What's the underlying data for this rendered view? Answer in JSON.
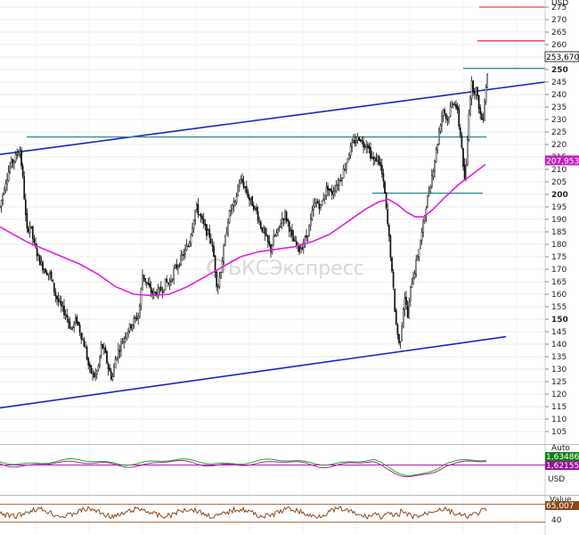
{
  "chart_data": [
    {
      "type": "candlestick",
      "currency_label": "USD",
      "y_ticks": [
        105,
        110,
        115,
        120,
        125,
        130,
        135,
        140,
        145,
        150,
        155,
        160,
        165,
        170,
        175,
        180,
        185,
        190,
        195,
        200,
        205,
        210,
        215,
        220,
        225,
        230,
        235,
        240,
        245,
        250,
        255,
        260,
        265,
        270,
        275
      ],
      "y_ticks_bold": [
        150,
        200,
        250
      ],
      "ylim": [
        100,
        280
      ],
      "last_price_label": "253,6700",
      "ma_value_label": "207,9538",
      "price_path": [
        [
          0,
          195
        ],
        [
          6,
          205
        ],
        [
          12,
          212
        ],
        [
          18,
          215
        ],
        [
          22,
          219
        ],
        [
          26,
          205
        ],
        [
          30,
          185
        ],
        [
          34,
          188
        ],
        [
          38,
          180
        ],
        [
          42,
          176
        ],
        [
          46,
          172
        ],
        [
          50,
          170
        ],
        [
          56,
          168
        ],
        [
          62,
          160
        ],
        [
          68,
          155
        ],
        [
          74,
          152
        ],
        [
          80,
          146
        ],
        [
          86,
          150
        ],
        [
          90,
          145
        ],
        [
          96,
          138
        ],
        [
          100,
          130
        ],
        [
          106,
          127
        ],
        [
          110,
          130
        ],
        [
          114,
          140
        ],
        [
          118,
          136
        ],
        [
          122,
          130
        ],
        [
          126,
          126
        ],
        [
          130,
          135
        ],
        [
          136,
          140
        ],
        [
          142,
          145
        ],
        [
          148,
          148
        ],
        [
          152,
          150
        ],
        [
          156,
          152
        ],
        [
          160,
          168
        ],
        [
          164,
          165
        ],
        [
          168,
          162
        ],
        [
          172,
          160
        ],
        [
          178,
          161
        ],
        [
          182,
          162
        ],
        [
          186,
          165
        ],
        [
          190,
          164
        ],
        [
          196,
          170
        ],
        [
          200,
          172
        ],
        [
          206,
          176
        ],
        [
          212,
          180
        ],
        [
          216,
          188
        ],
        [
          220,
          195
        ],
        [
          224,
          192
        ],
        [
          228,
          188
        ],
        [
          232,
          185
        ],
        [
          236,
          183
        ],
        [
          240,
          175
        ],
        [
          244,
          162
        ],
        [
          248,
          170
        ],
        [
          252,
          180
        ],
        [
          256,
          190
        ],
        [
          260,
          195
        ],
        [
          264,
          196
        ],
        [
          268,
          205
        ],
        [
          272,
          205
        ],
        [
          276,
          202
        ],
        [
          280,
          198
        ],
        [
          284,
          196
        ],
        [
          288,
          193
        ],
        [
          292,
          188
        ],
        [
          296,
          185
        ],
        [
          300,
          181
        ],
        [
          304,
          178
        ],
        [
          308,
          183
        ],
        [
          312,
          185
        ],
        [
          316,
          190
        ],
        [
          320,
          192
        ],
        [
          324,
          188
        ],
        [
          328,
          182
        ],
        [
          332,
          180
        ],
        [
          336,
          178
        ],
        [
          340,
          180
        ],
        [
          344,
          183
        ],
        [
          348,
          188
        ],
        [
          352,
          195
        ],
        [
          356,
          197
        ],
        [
          360,
          195
        ],
        [
          364,
          200
        ],
        [
          368,
          203
        ],
        [
          372,
          200
        ],
        [
          376,
          203
        ],
        [
          380,
          205
        ],
        [
          384,
          208
        ],
        [
          388,
          212
        ],
        [
          392,
          217
        ],
        [
          396,
          220
        ],
        [
          400,
          222
        ],
        [
          404,
          223
        ],
        [
          408,
          220
        ],
        [
          412,
          221
        ],
        [
          416,
          216
        ],
        [
          420,
          213
        ],
        [
          424,
          215
        ],
        [
          428,
          210
        ],
        [
          432,
          200
        ],
        [
          434,
          192
        ],
        [
          436,
          185
        ],
        [
          438,
          178
        ],
        [
          440,
          168
        ],
        [
          442,
          160
        ],
        [
          444,
          150
        ],
        [
          446,
          145
        ],
        [
          448,
          140
        ],
        [
          450,
          143
        ],
        [
          452,
          152
        ],
        [
          454,
          160
        ],
        [
          456,
          155
        ],
        [
          458,
          150
        ],
        [
          460,
          160
        ],
        [
          462,
          165
        ],
        [
          466,
          170
        ],
        [
          470,
          178
        ],
        [
          474,
          185
        ],
        [
          478,
          195
        ],
        [
          482,
          202
        ],
        [
          486,
          210
        ],
        [
          490,
          218
        ],
        [
          494,
          228
        ],
        [
          498,
          235
        ],
        [
          502,
          229
        ],
        [
          506,
          235
        ],
        [
          510,
          238
        ],
        [
          514,
          232
        ],
        [
          516,
          225
        ],
        [
          518,
          222
        ],
        [
          520,
          210
        ],
        [
          522,
          205
        ],
        [
          524,
          215
        ],
        [
          526,
          232
        ],
        [
          528,
          240
        ],
        [
          530,
          245
        ],
        [
          532,
          241
        ],
        [
          534,
          243
        ],
        [
          536,
          238
        ],
        [
          538,
          235
        ],
        [
          540,
          230
        ],
        [
          542,
          230
        ],
        [
          544,
          238
        ],
        [
          546,
          245
        ],
        [
          548,
          250
        ]
      ],
      "ma_path": [
        [
          0,
          187
        ],
        [
          15,
          184
        ],
        [
          30,
          181
        ],
        [
          50,
          178
        ],
        [
          70,
          175
        ],
        [
          90,
          172
        ],
        [
          110,
          168
        ],
        [
          130,
          163
        ],
        [
          150,
          160
        ],
        [
          170,
          159.5
        ],
        [
          190,
          160
        ],
        [
          210,
          163
        ],
        [
          230,
          167
        ],
        [
          250,
          171
        ],
        [
          270,
          175
        ],
        [
          290,
          177
        ],
        [
          310,
          178
        ],
        [
          330,
          179
        ],
        [
          350,
          181
        ],
        [
          370,
          184
        ],
        [
          390,
          189
        ],
        [
          410,
          194
        ],
        [
          425,
          197
        ],
        [
          436,
          198
        ],
        [
          446,
          196
        ],
        [
          456,
          193
        ],
        [
          466,
          191
        ],
        [
          476,
          191
        ],
        [
          486,
          194
        ],
        [
          500,
          199
        ],
        [
          515,
          204
        ],
        [
          530,
          208
        ],
        [
          545,
          212
        ]
      ],
      "channel_upper": [
        [
          0,
          216
        ],
        [
          612,
          245
        ]
      ],
      "channel_lower": [
        [
          0,
          114.5
        ],
        [
          568,
          143
        ]
      ],
      "horizontal_levels": [
        {
          "value": 223,
          "x0": 30,
          "x1": 546,
          "color": "#2a8a8a"
        },
        {
          "value": 200.5,
          "x0": 418,
          "x1": 542,
          "color": "#2a8a8a"
        },
        {
          "value": 250.5,
          "x0": 520,
          "x1": 612,
          "color": "#2a8a8a"
        },
        {
          "value": 261.5,
          "x0": 536,
          "x1": 612,
          "color": "#e04040"
        },
        {
          "value": 275,
          "x0": 538,
          "x1": 612,
          "color": "#e04040"
        }
      ],
      "colors": {
        "price": "#111111",
        "ma": "#e020e0",
        "channel": "#1a24c8",
        "level": "#2a8a8a",
        "target": "#e04040",
        "price_badge": "#000000",
        "ma_badge": "#c020c0"
      }
    },
    {
      "type": "line",
      "scale_label": "Auto",
      "unit_label": "USD",
      "value_label_1": "1,634860",
      "value_label_2": "1,621555",
      "colors": {
        "line1": "#22aa22",
        "line2": "#aa22aa",
        "badge1": "#108010",
        "badge2": "#9a109a"
      }
    },
    {
      "type": "line",
      "header_label": "Value",
      "y_ticks": [
        40
      ],
      "value_label": "65,007",
      "colors": {
        "line": "#8b4a1a",
        "level": "#8b4a1a"
      }
    }
  ],
  "watermark": {
    "text": "БКСЭкспресс"
  }
}
